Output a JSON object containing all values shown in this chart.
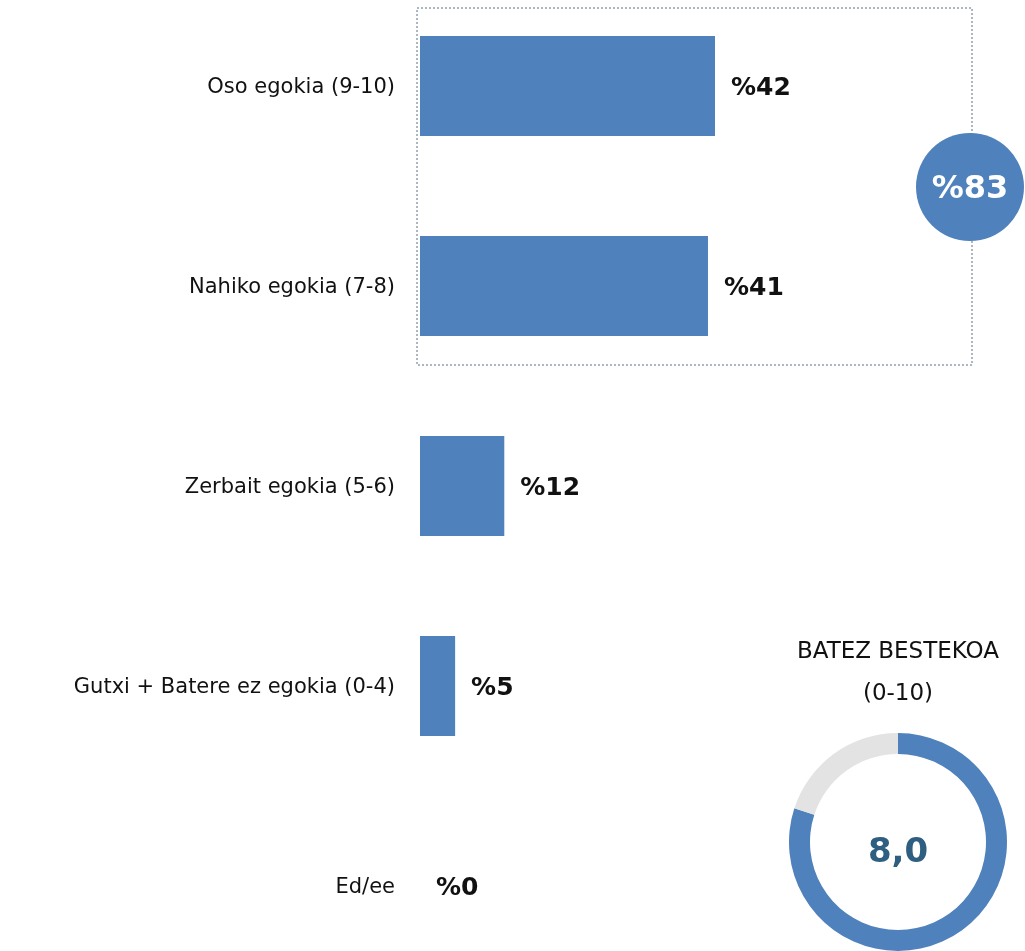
{
  "chart_data": [
    {
      "type": "bar",
      "orientation": "horizontal",
      "categories": [
        "Oso egokia (9-10)",
        "Nahiko egokia (7-8)",
        "Zerbait egokia (5-6)",
        "Gutxi + Batere ez egokia (0-4)",
        "Ed/ee"
      ],
      "values": [
        42,
        41,
        12,
        5,
        0
      ],
      "color": "#4f81bd",
      "value_labels": [
        "%42",
        "%41",
        "%12",
        "%5",
        "%0"
      ],
      "annotations": [
        "%83"
      ]
    },
    {
      "type": "donut",
      "title": "BATEZ BESTEKOA (0-10)",
      "categories": [
        null,
        null
      ],
      "values": [
        80,
        20
      ],
      "colors": [
        "#4f81bd",
        "#e3e3e3"
      ],
      "annotations": [
        "8,0"
      ]
    }
  ]
}
